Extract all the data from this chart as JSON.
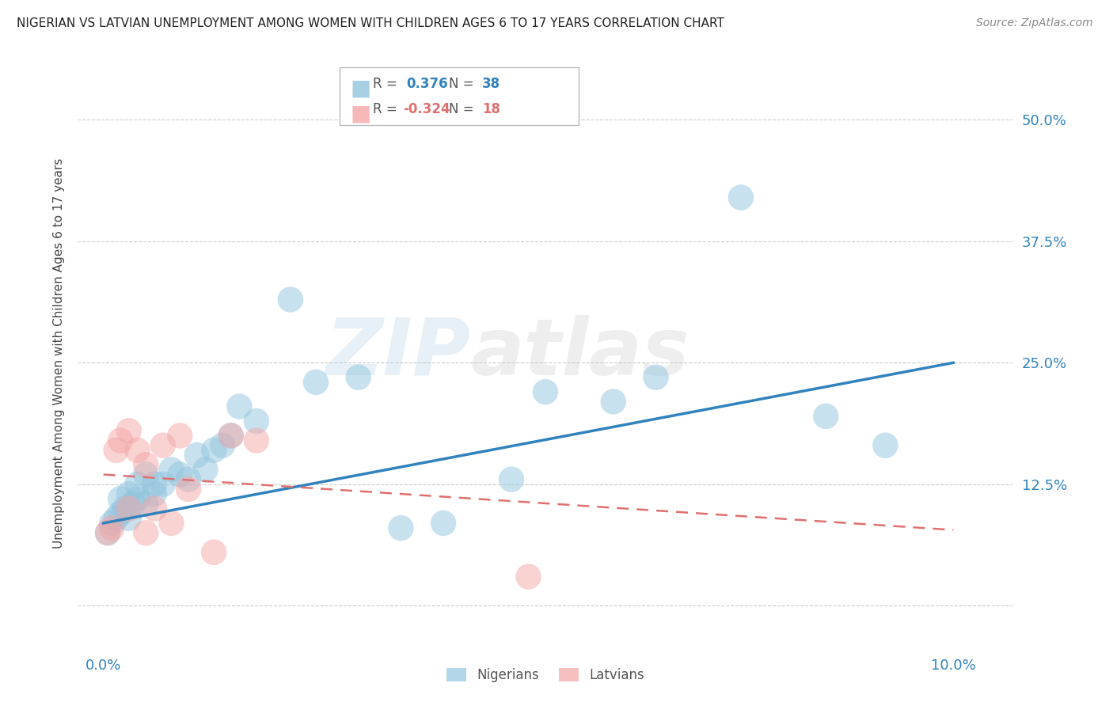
{
  "title": "NIGERIAN VS LATVIAN UNEMPLOYMENT AMONG WOMEN WITH CHILDREN AGES 6 TO 17 YEARS CORRELATION CHART",
  "source": "Source: ZipAtlas.com",
  "ylabel": "Unemployment Among Women with Children Ages 6 to 17 years",
  "ytick_vals": [
    0.0,
    0.125,
    0.25,
    0.375,
    0.5
  ],
  "ytick_labels": [
    "",
    "12.5%",
    "25.0%",
    "37.5%",
    "50.0%"
  ],
  "xtick_positions": [
    0.0,
    0.02,
    0.04,
    0.06,
    0.08,
    0.1
  ],
  "xtick_labels": [
    "0.0%",
    "",
    "",
    "",
    "",
    "10.0%"
  ],
  "xlim": [
    -0.003,
    0.107
  ],
  "ylim": [
    -0.045,
    0.565
  ],
  "nigerian_R": "0.376",
  "nigerian_N": "38",
  "latvian_R": "-0.324",
  "latvian_N": "18",
  "nigerian_color": "#92c5de",
  "latvian_color": "#f4a6a6",
  "nigerian_line_color": "#3182bd",
  "latvian_line_color": "#e07070",
  "watermark_zip": "ZIP",
  "watermark_atlas": "atlas",
  "nigerian_x": [
    0.0005,
    0.001,
    0.0015,
    0.002,
    0.002,
    0.0025,
    0.003,
    0.003,
    0.0035,
    0.004,
    0.004,
    0.005,
    0.005,
    0.006,
    0.006,
    0.007,
    0.008,
    0.009,
    0.01,
    0.011,
    0.012,
    0.013,
    0.014,
    0.015,
    0.016,
    0.018,
    0.022,
    0.025,
    0.03,
    0.035,
    0.04,
    0.048,
    0.052,
    0.06,
    0.065,
    0.075,
    0.085,
    0.092
  ],
  "nigerian_y": [
    0.075,
    0.085,
    0.09,
    0.095,
    0.11,
    0.1,
    0.09,
    0.115,
    0.105,
    0.11,
    0.125,
    0.105,
    0.135,
    0.115,
    0.125,
    0.125,
    0.14,
    0.135,
    0.13,
    0.155,
    0.14,
    0.16,
    0.165,
    0.175,
    0.205,
    0.19,
    0.315,
    0.23,
    0.235,
    0.08,
    0.085,
    0.13,
    0.22,
    0.21,
    0.235,
    0.42,
    0.195,
    0.165
  ],
  "latvian_x": [
    0.0005,
    0.001,
    0.0015,
    0.002,
    0.003,
    0.003,
    0.004,
    0.005,
    0.005,
    0.006,
    0.007,
    0.008,
    0.009,
    0.01,
    0.013,
    0.015,
    0.018,
    0.05
  ],
  "latvian_y": [
    0.075,
    0.08,
    0.16,
    0.17,
    0.18,
    0.1,
    0.16,
    0.145,
    0.075,
    0.1,
    0.165,
    0.085,
    0.175,
    0.12,
    0.055,
    0.175,
    0.17,
    0.03
  ],
  "nig_line_x0": 0.0,
  "nig_line_y0": 0.085,
  "nig_line_x1": 0.1,
  "nig_line_y1": 0.25,
  "lat_line_x0": 0.0,
  "lat_line_y0": 0.135,
  "lat_line_x1": 0.1,
  "lat_line_y1": 0.078
}
